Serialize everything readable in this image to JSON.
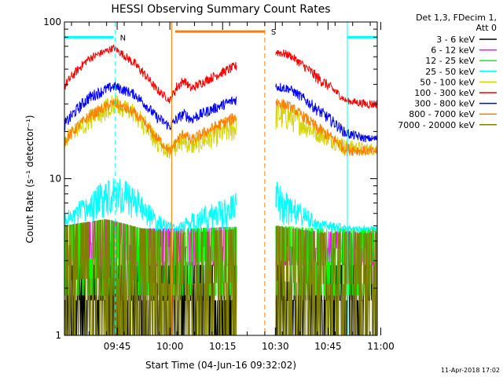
{
  "chart_data": {
    "type": "line",
    "title": "HESSI Observing Summary Count Rates",
    "xlabel": "Start Time (04-Jun-16 09:32:02)",
    "ylabel": "Count Rate (s⁻¹ detector⁻¹)",
    "y_scale": "log",
    "ylim": [
      1,
      100
    ],
    "xlim_minutes": [
      -2,
      87
    ],
    "y_ticks": [
      {
        "value": 1,
        "label": "1"
      },
      {
        "value": 10,
        "label": "10"
      },
      {
        "value": 100,
        "label": "100"
      }
    ],
    "x_ticks": [
      {
        "minutes": 13,
        "label": "09:45"
      },
      {
        "minutes": 28,
        "label": "10:00"
      },
      {
        "minutes": 43,
        "label": "10:15"
      },
      {
        "minutes": 58,
        "label": "10:30"
      },
      {
        "minutes": 73,
        "label": "10:45"
      },
      {
        "minutes": 88,
        "label": "11:00"
      }
    ],
    "legend": {
      "header": [
        "Det 1,3, FDecim 1,",
        "Att 0"
      ],
      "placement": "right"
    },
    "gaps_minutes": [
      [
        47,
        58
      ]
    ],
    "markers": [
      {
        "minutes": 12.5,
        "color": "#00ffff",
        "style": "dashed"
      },
      {
        "minutes": 28.5,
        "color": "#ff8000",
        "style": "solid"
      },
      {
        "minutes": 55,
        "color": "#ff8000",
        "style": "dashed"
      },
      {
        "minutes": 78.5,
        "color": "#00ffff",
        "style": "solid"
      },
      {
        "minutes": 89.5,
        "color": "#00ffff",
        "style": "dashed"
      }
    ],
    "flag_bars": [
      {
        "start": -2,
        "end": 12,
        "y": 80,
        "color": "#00ffff",
        "label": "N"
      },
      {
        "start": 29.5,
        "end": 55,
        "y": 87,
        "color": "#ff8000",
        "label": "S"
      },
      {
        "start": 78.5,
        "end": 89.5,
        "y": 80,
        "color": "#00ffff",
        "label": ""
      }
    ],
    "series": [
      {
        "name": "3 - 6 keV",
        "color": "#000000",
        "x": [
          -2,
          10,
          20,
          30,
          34,
          58,
          70,
          80,
          90
        ],
        "lo": [
          1,
          1,
          1,
          1,
          1,
          1,
          1,
          1,
          1
        ],
        "hi": [
          2.8,
          2.8,
          2.8,
          2.8,
          2.8,
          2.8,
          2.8,
          2.8,
          2.8
        ],
        "quantized": true
      },
      {
        "name": "6 - 12 keV",
        "color": "#ff00ff",
        "x": [
          -2,
          10,
          20,
          30,
          34,
          58,
          70,
          80,
          90
        ],
        "lo": [
          2.8,
          2.8,
          2.8,
          2.8,
          2.8,
          2.8,
          2.8,
          2.8,
          2.8
        ],
        "hi": [
          5,
          5.5,
          4.8,
          4.8,
          4.8,
          5,
          4.6,
          4.6,
          4.6
        ],
        "quantized": true
      },
      {
        "name": "12 - 25 keV",
        "color": "#00ff00",
        "x": [
          -2,
          10,
          20,
          30,
          34,
          58,
          70,
          80,
          90
        ],
        "lo": [
          1.8,
          1.8,
          1.8,
          1.8,
          1.8,
          1.8,
          1.8,
          1.8,
          1.8
        ],
        "hi": [
          5,
          5.5,
          4.8,
          4.8,
          4.8,
          5,
          4.8,
          4.8,
          4.8
        ],
        "quantized": true
      },
      {
        "name": "25 - 50 keV",
        "color": "#00ffff",
        "x": [
          -2,
          5,
          12,
          18,
          24,
          30,
          34,
          58,
          62,
          70,
          80,
          90
        ],
        "lo": [
          4.6,
          5,
          6,
          5.5,
          4.6,
          4.6,
          4.6,
          5,
          5,
          4.6,
          4.6,
          4.6
        ],
        "hi": [
          6,
          8,
          11,
          9,
          6,
          5,
          6,
          10,
          8,
          5.5,
          5,
          5
        ],
        "quantized": false
      },
      {
        "name": "50 - 100 keV",
        "color": "#d4d400",
        "x": [
          -2,
          5,
          12,
          18,
          24,
          28,
          30,
          32,
          34,
          58,
          62,
          70,
          78,
          84,
          90
        ],
        "lo": [
          15,
          20,
          25,
          22,
          15,
          13,
          14,
          15,
          14,
          20,
          20,
          17,
          14,
          14,
          14
        ],
        "hi": [
          20,
          28,
          35,
          30,
          20,
          17,
          18,
          20,
          18,
          32,
          30,
          22,
          18,
          17,
          17
        ],
        "quantized": false
      },
      {
        "name": "100 - 300 keV",
        "color": "#ff0000",
        "x": [
          -2,
          5,
          12,
          18,
          24,
          28,
          30,
          32,
          34,
          58,
          62,
          70,
          78,
          84,
          90
        ],
        "lo": [
          36,
          55,
          65,
          50,
          35,
          30,
          35,
          40,
          35,
          60,
          58,
          40,
          30,
          28,
          28
        ],
        "hi": [
          42,
          62,
          72,
          58,
          40,
          33,
          42,
          45,
          40,
          70,
          65,
          48,
          33,
          32,
          32
        ],
        "quantized": false
      },
      {
        "name": "300 - 800 keV",
        "color": "#0000ff",
        "x": [
          -2,
          5,
          12,
          18,
          24,
          28,
          30,
          32,
          34,
          58,
          62,
          70,
          78,
          84,
          90
        ],
        "lo": [
          20,
          30,
          36,
          32,
          23,
          20,
          22,
          24,
          22,
          36,
          35,
          25,
          18,
          17,
          17
        ],
        "hi": [
          24,
          36,
          42,
          37,
          27,
          23,
          26,
          28,
          26,
          42,
          40,
          30,
          21,
          19,
          19
        ],
        "quantized": false
      },
      {
        "name": "800 - 7000 keV",
        "color": "#ff8000",
        "x": [
          -2,
          5,
          12,
          18,
          24,
          28,
          30,
          32,
          34,
          58,
          62,
          70,
          78,
          84,
          90
        ],
        "lo": [
          16,
          23,
          28,
          24,
          17,
          14,
          16,
          18,
          16,
          28,
          27,
          19,
          14,
          14,
          14
        ],
        "hi": [
          19,
          27,
          33,
          28,
          20,
          16,
          19,
          21,
          19,
          34,
          31,
          23,
          17,
          16,
          16
        ],
        "quantized": false
      },
      {
        "name": "7000 - 20000 keV",
        "color": "#808000",
        "x": [
          -2,
          10,
          20,
          30,
          34,
          58,
          70,
          80,
          90
        ],
        "lo": [
          1,
          1,
          1,
          1,
          1,
          1,
          1,
          1,
          1
        ],
        "hi": [
          5,
          5.5,
          4.8,
          4.5,
          4.5,
          5,
          4.5,
          4.5,
          4.5
        ],
        "quantized": true
      }
    ]
  },
  "footer": {
    "timestamp": "11-Apr-2018 17:02"
  }
}
